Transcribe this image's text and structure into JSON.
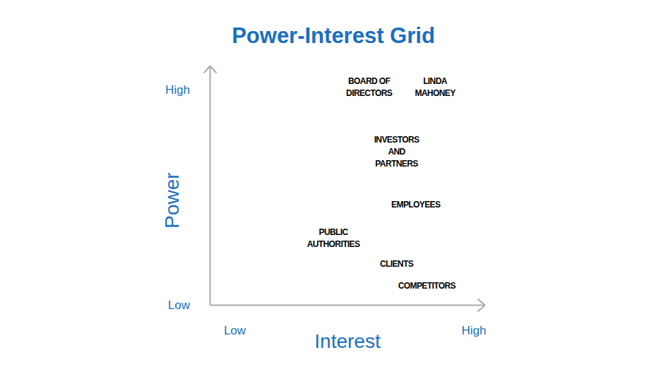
{
  "chart_data": {
    "type": "scatter",
    "title": "Power-Interest Grid",
    "x_label": "Interest",
    "y_label": "Power",
    "xlim": [
      0,
      10
    ],
    "ylim": [
      0,
      10
    ],
    "xticks": [
      {
        "value": 0.9,
        "label": "Low"
      },
      {
        "value": 9.6,
        "label": "High"
      }
    ],
    "yticks": [
      {
        "value": 0,
        "label": "Low"
      },
      {
        "value": 9,
        "label": "High"
      }
    ],
    "x": [
      5.8,
      8.2,
      6.8,
      7.5,
      4.5,
      6.8,
      7.9
    ],
    "values": [
      9.1,
      9.1,
      6.4,
      4.2,
      2.8,
      1.7,
      0.8
    ],
    "labels": [
      [
        "BOARD OF",
        "DIRECTORS"
      ],
      [
        "LINDA",
        "MAHONEY"
      ],
      [
        "INVESTORS",
        "AND",
        "PARTNERS"
      ],
      [
        "EMPLOYEES"
      ],
      [
        "PUBLIC",
        "AUTHORITIES"
      ],
      [
        "CLIENTS"
      ],
      [
        "COMPETITORS"
      ]
    ],
    "grid": false
  }
}
